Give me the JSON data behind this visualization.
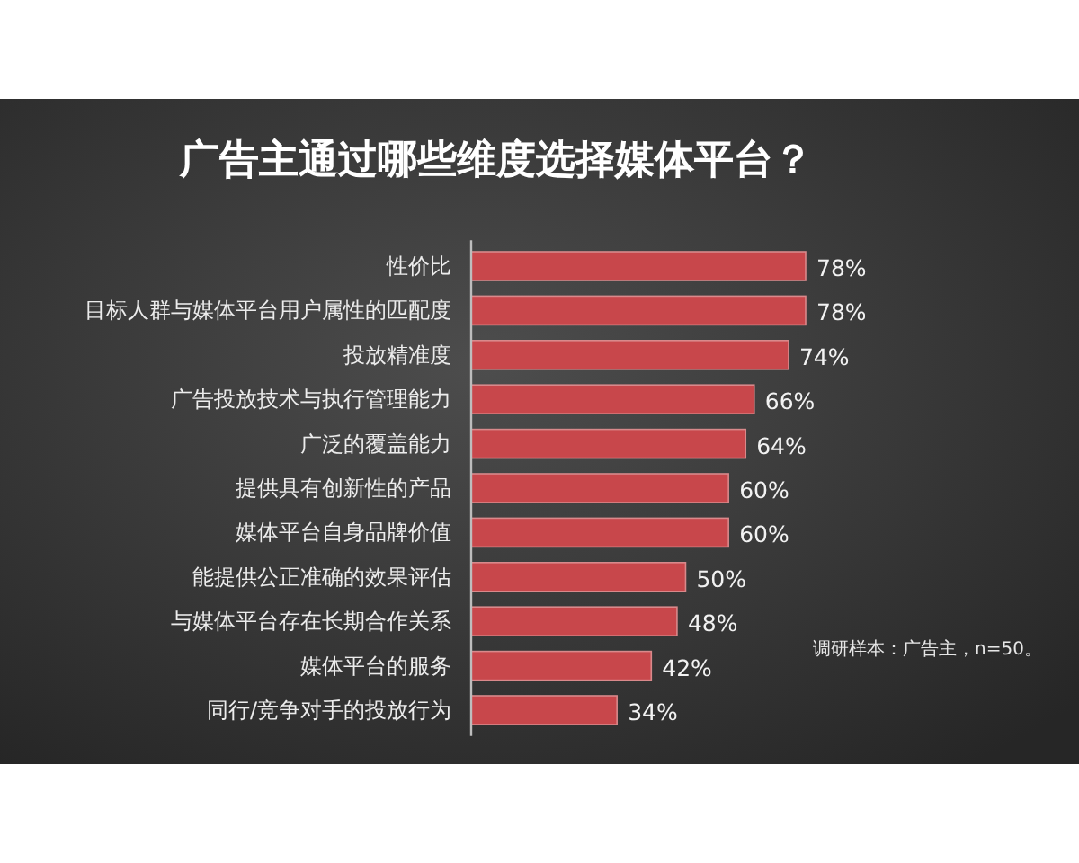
{
  "chart_data": {
    "type": "bar",
    "orientation": "horizontal",
    "title": "广告主通过哪些维度选择媒体平台？",
    "categories": [
      "性价比",
      "目标人群与媒体平台用户属性的匹配度",
      "投放精准度",
      "广告投放技术与执行管理能力",
      "广泛的覆盖能力",
      "提供具有创新性的产品",
      "媒体平台自身品牌价值",
      "能提供公正准确的效果评估",
      "与媒体平台存在长期合作关系",
      "媒体平台的服务",
      "同行/竞争对手的投放行为"
    ],
    "values": [
      78,
      78,
      74,
      66,
      64,
      60,
      60,
      50,
      48,
      42,
      34
    ],
    "value_labels": [
      "78%",
      "78%",
      "74%",
      "66%",
      "64%",
      "60%",
      "60%",
      "50%",
      "48%",
      "42%",
      "34%"
    ],
    "color": "#c8474b",
    "annotations": [
      "调研样本：广告主，n=50。"
    ]
  }
}
